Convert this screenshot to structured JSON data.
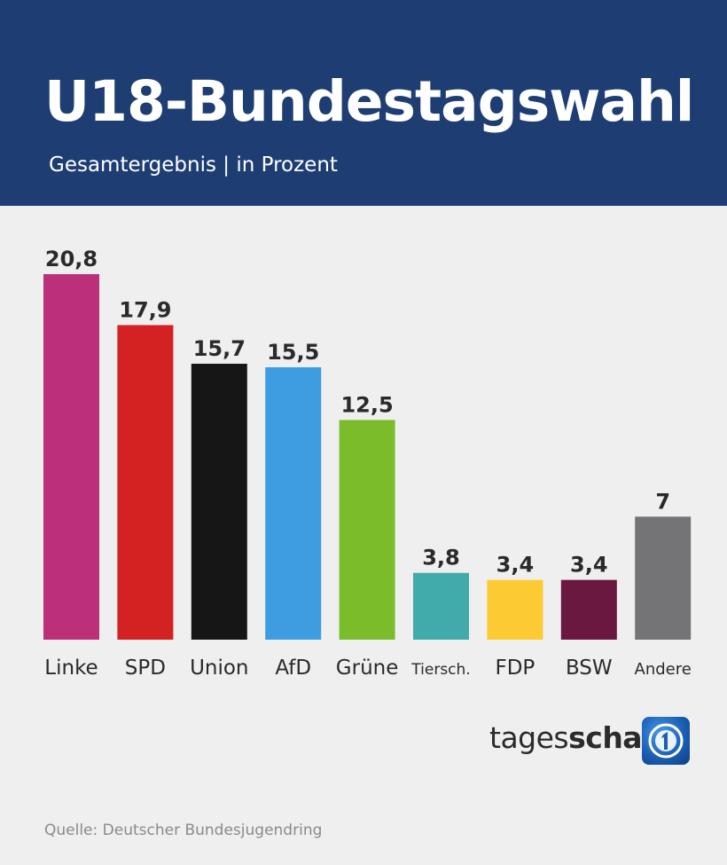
{
  "header": {
    "title": "U18-Bundestagswahl",
    "subtitle": "Gesamtergebnis | in Prozent"
  },
  "chart_data": {
    "type": "bar",
    "categories": [
      "Linke",
      "SPD",
      "Union",
      "AfD",
      "Grüne",
      "Tiersch.",
      "FDP",
      "BSW",
      "Andere"
    ],
    "values": [
      20.8,
      17.9,
      15.7,
      15.5,
      12.5,
      3.8,
      3.4,
      3.4,
      7
    ],
    "value_labels": [
      "20,8",
      "17,9",
      "15,7",
      "15,5",
      "12,5",
      "3,8",
      "3,4",
      "3,4",
      "7"
    ],
    "colors": [
      "#bc2f79",
      "#d42222",
      "#161616",
      "#3d9de0",
      "#7bbc2b",
      "#40abaa",
      "#fccb34",
      "#6a1840",
      "#747476"
    ],
    "ylim": [
      0,
      20.8
    ],
    "grid": false,
    "title": "U18-Bundestagswahl",
    "subtitle": "Gesamtergebnis | in Prozent"
  },
  "branding": {
    "name_light": "tages",
    "name_bold": "schau",
    "logo_icon": "tagesschau-logo-icon"
  },
  "footer": {
    "source": "Quelle: Deutscher Bundesjugendring"
  }
}
